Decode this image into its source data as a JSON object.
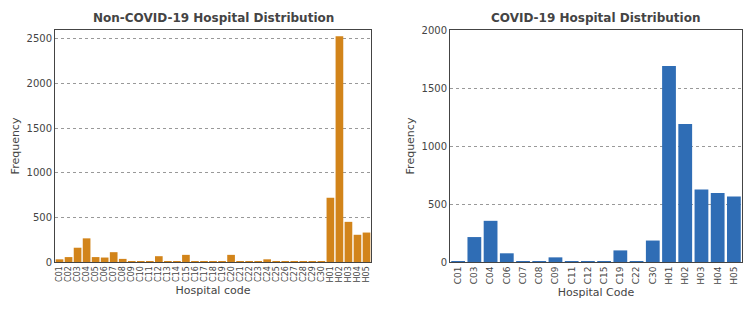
{
  "chart_data": [
    {
      "type": "bar",
      "title": "Non-COVID-19 Hospital Distribution",
      "xlabel": "Hospital code",
      "ylabel": "Frequency",
      "color": "#D2841A",
      "categories": [
        "C01",
        "C02",
        "C03",
        "C04",
        "C05",
        "C06",
        "C07",
        "C08",
        "C09",
        "C10",
        "C11",
        "C12",
        "C13",
        "C14",
        "C15",
        "C16",
        "C17",
        "C18",
        "C19",
        "C20",
        "C21",
        "C22",
        "C23",
        "C24",
        "C25",
        "C26",
        "C27",
        "C28",
        "C29",
        "C30",
        "H01",
        "H02",
        "H03",
        "H04",
        "H05"
      ],
      "values": [
        30,
        55,
        160,
        265,
        55,
        50,
        110,
        35,
        10,
        5,
        5,
        65,
        5,
        5,
        80,
        5,
        5,
        5,
        5,
        80,
        5,
        5,
        5,
        30,
        5,
        5,
        5,
        5,
        5,
        5,
        720,
        2530,
        450,
        305,
        330
      ],
      "ylim": [
        0,
        2600
      ],
      "yticks": [
        0,
        500,
        1000,
        1500,
        2000,
        2500
      ],
      "grid": true
    },
    {
      "type": "bar",
      "title": "COVID-19 Hospital Distribution",
      "xlabel": "Hospital Code",
      "ylabel": "Frequency",
      "color": "#2F6DB5",
      "categories": [
        "C01",
        "C03",
        "C04",
        "C06",
        "C07",
        "C08",
        "C09",
        "C11",
        "C12",
        "C15",
        "C19",
        "C22",
        "C30",
        "H01",
        "H02",
        "H03",
        "H04",
        "H05"
      ],
      "values": [
        5,
        215,
        355,
        75,
        5,
        5,
        40,
        5,
        5,
        5,
        100,
        5,
        185,
        1690,
        1190,
        625,
        595,
        565
      ],
      "ylim": [
        0,
        2000
      ],
      "yticks": [
        0,
        500,
        1000,
        1500,
        2000
      ],
      "grid": true
    }
  ]
}
